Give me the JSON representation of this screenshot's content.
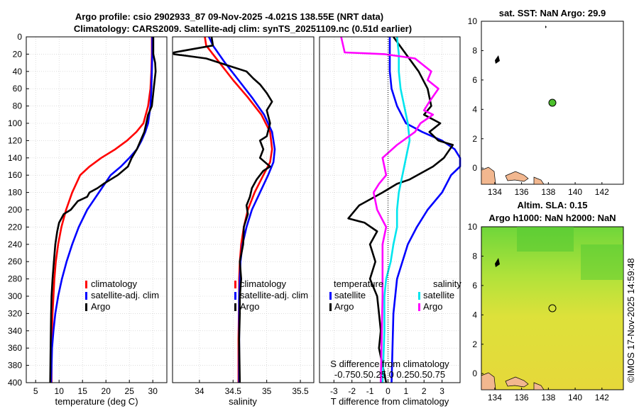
{
  "colors": {
    "climatology": "#ff0000",
    "satellite": "#0000ff",
    "argo": "#000000",
    "salinity_diff": "#ff00ff",
    "satellite_s_diff": "#00e5ee",
    "land": "#f2b78f",
    "grid": "#c8c8c8"
  },
  "titles": {
    "line1": "Argo profile: csio 2902933_87 09-Nov-2025 -4.021S 138.55E (NRT data)",
    "line2": "Climatology: CARS2009. Satellite-adj clim: synTS_20251109.nc (0.51d earlier)"
  },
  "depth_axis": {
    "ticks": [
      "0",
      "20",
      "40",
      "60",
      "80",
      "100",
      "120",
      "140",
      "160",
      "180",
      "200",
      "220",
      "240",
      "260",
      "280",
      "300",
      "320",
      "340",
      "360",
      "380",
      "400"
    ],
    "range": [
      0,
      400
    ]
  },
  "chart_data": [
    {
      "type": "line",
      "id": "temperature",
      "xlabel": "temperature (deg C)",
      "xlim": [
        3,
        33
      ],
      "xticks": [
        5,
        10,
        15,
        20,
        25,
        30
      ],
      "xtick_labels": [
        "5",
        "10",
        "15",
        "20",
        "25",
        "30"
      ],
      "ylabel": "depth",
      "ylim": [
        0,
        400
      ],
      "legend": [
        "climatology",
        "satellite-adj. clim",
        "Argo"
      ],
      "series": [
        {
          "name": "climatology",
          "color_key": "climatology",
          "x": [
            29.8,
            29.8,
            29.7,
            29.5,
            29.0,
            28.0,
            26.5,
            24.5,
            22.0,
            19.0,
            16.5,
            14.5,
            12.8,
            11.5,
            10.5,
            9.8,
            9.3,
            9.0,
            8.8,
            8.6,
            8.5,
            8.4,
            8.4
          ],
          "depth": [
            0,
            20,
            40,
            60,
            80,
            100,
            110,
            120,
            130,
            140,
            150,
            160,
            180,
            200,
            220,
            240,
            260,
            280,
            300,
            320,
            340,
            360,
            400
          ]
        },
        {
          "name": "satellite-adj. clim",
          "color_key": "satellite",
          "x": [
            29.9,
            29.9,
            29.8,
            29.7,
            29.5,
            29.0,
            28.4,
            27.6,
            26.6,
            25.0,
            23.2,
            21.0,
            18.5,
            16.0,
            14.2,
            12.8,
            11.6,
            10.6,
            9.8,
            9.2,
            8.8,
            8.5,
            8.3
          ],
          "depth": [
            0,
            20,
            40,
            60,
            80,
            100,
            110,
            120,
            130,
            140,
            150,
            160,
            180,
            200,
            220,
            240,
            260,
            280,
            300,
            320,
            340,
            360,
            400
          ]
        },
        {
          "name": "Argo",
          "color_key": "argo",
          "x": [
            30.1,
            30.1,
            30.5,
            30.6,
            30.2,
            29.8,
            29.0,
            28.6,
            28.2,
            27.4,
            26.6,
            25.5,
            24.7,
            22.5,
            21.0,
            19.5,
            18.2,
            16.5,
            16.0,
            14.0,
            12.5,
            11.0,
            10.5,
            10.0,
            9.6,
            9.2,
            8.9,
            8.6,
            8.4,
            8.3,
            8.2,
            8.1
          ],
          "depth": [
            0,
            20,
            30,
            40,
            60,
            80,
            90,
            100,
            110,
            120,
            130,
            140,
            150,
            160,
            165,
            170,
            175,
            180,
            185,
            190,
            200,
            205,
            210,
            215,
            225,
            240,
            260,
            280,
            300,
            320,
            360,
            400
          ]
        }
      ]
    },
    {
      "type": "line",
      "id": "salinity",
      "xlabel": "salinity",
      "xlim": [
        33.6,
        35.7
      ],
      "xticks": [
        34,
        34.5,
        35,
        35.5
      ],
      "xtick_labels": [
        "34",
        "34.5",
        "35",
        "35.5"
      ],
      "ylabel": "depth",
      "ylim": [
        0,
        400
      ],
      "legend": [
        "climatology",
        "satellite-adj. clim",
        "Argo"
      ],
      "series": [
        {
          "name": "climatology",
          "color_key": "climatology",
          "x": [
            34.08,
            34.1,
            34.3,
            34.5,
            34.72,
            34.92,
            35.05,
            35.08,
            35.05,
            34.95,
            34.82,
            34.72,
            34.66,
            34.62,
            34.6,
            34.59,
            34.59,
            34.58,
            34.58
          ],
          "depth": [
            0,
            10,
            30,
            50,
            70,
            90,
            110,
            130,
            145,
            160,
            180,
            200,
            220,
            240,
            260,
            280,
            300,
            350,
            400
          ]
        },
        {
          "name": "satellite-adj. clim",
          "color_key": "satellite",
          "x": [
            34.14,
            34.2,
            34.38,
            34.58,
            34.78,
            34.96,
            35.08,
            35.12,
            35.1,
            35.02,
            34.9,
            34.78,
            34.7,
            34.64,
            34.61,
            34.6,
            34.59,
            34.59,
            34.59
          ],
          "depth": [
            0,
            10,
            30,
            50,
            70,
            90,
            110,
            130,
            145,
            160,
            180,
            200,
            220,
            240,
            260,
            280,
            300,
            350,
            400
          ]
        },
        {
          "name": "Argo",
          "color_key": "argo",
          "x": [
            34.18,
            34.2,
            33.62,
            33.62,
            34.1,
            34.3,
            34.5,
            34.7,
            34.8,
            34.9,
            35.0,
            35.08,
            35.0,
            35.05,
            35.0,
            34.9,
            34.95,
            34.9,
            35.05,
            34.95,
            34.85,
            34.78,
            34.75,
            34.7,
            34.72,
            34.66,
            34.65,
            34.6,
            34.62,
            34.6,
            34.6,
            34.59,
            34.6
          ],
          "depth": [
            0,
            10,
            18,
            20,
            25,
            30,
            35,
            40,
            48,
            55,
            65,
            75,
            85,
            100,
            115,
            120,
            130,
            140,
            150,
            155,
            165,
            175,
            185,
            195,
            205,
            220,
            240,
            260,
            280,
            300,
            320,
            350,
            400
          ]
        }
      ]
    },
    {
      "type": "line",
      "id": "differences",
      "xlabel": "T difference from climatology",
      "top_xlabel": "S difference from climatology",
      "xlim": [
        -3.8,
        4.0
      ],
      "xticks": [
        -3,
        -2,
        -1,
        0,
        1,
        2,
        3
      ],
      "xtick_labels": [
        "-3",
        "-2",
        "-1",
        "0",
        "1",
        "2",
        "3"
      ],
      "top_xticks_text": "-0.750.50.25 0 0.250.50.75",
      "ylabel": "depth",
      "ylim": [
        0,
        400
      ],
      "legend_titles": [
        "temperature",
        "salinity"
      ],
      "legend": [
        "satellite",
        "Argo",
        "satellite",
        "Argo"
      ],
      "series": [
        {
          "name": "T satellite",
          "color_key": "satellite",
          "x": [
            0.1,
            0.1,
            0.1,
            0.2,
            0.5,
            1.0,
            1.9,
            3.0,
            3.7,
            4.0,
            4.0,
            3.5,
            3.0,
            2.2,
            1.6,
            1.1,
            0.8,
            0.5,
            0.3,
            0.2
          ],
          "depth": [
            0,
            20,
            40,
            60,
            80,
            100,
            110,
            120,
            130,
            140,
            150,
            160,
            180,
            200,
            220,
            240,
            260,
            280,
            320,
            400
          ]
        },
        {
          "name": "T Argo",
          "color_key": "argo",
          "x": [
            0.3,
            1.0,
            1.7,
            2.2,
            2.4,
            2.0,
            2.9,
            2.3,
            2.8,
            3.6,
            3.1,
            2.5,
            1.2,
            0.5,
            -0.3,
            -1.6,
            -2.2,
            -1.3,
            -0.6,
            -1.0,
            -0.7,
            -1.0,
            -0.6,
            -0.5,
            -0.4,
            -0.5,
            -0.3,
            -0.2,
            -0.1
          ],
          "depth": [
            0,
            20,
            40,
            60,
            80,
            90,
            100,
            110,
            120,
            125,
            140,
            150,
            165,
            170,
            180,
            195,
            210,
            215,
            225,
            240,
            260,
            280,
            300,
            320,
            340,
            360,
            380,
            390,
            400
          ]
        },
        {
          "name": "S satellite",
          "color_key": "satellite_s_diff",
          "x": [
            0.5,
            0.6,
            0.6,
            0.7,
            0.9,
            1.1,
            1.2,
            1.0,
            0.8,
            0.6,
            0.5,
            0.5,
            0.3,
            0.15,
            -0.1,
            -0.2,
            -0.2,
            -0.3
          ],
          "depth": [
            0,
            20,
            40,
            60,
            80,
            100,
            120,
            140,
            160,
            180,
            200,
            220,
            240,
            260,
            280,
            300,
            340,
            400
          ]
        },
        {
          "name": "S Argo",
          "color_key": "salinity_diff",
          "x": [
            -2.6,
            -2.4,
            -0.2,
            1.5,
            2.4,
            2.2,
            2.8,
            2.3,
            2.0,
            2.5,
            1.8,
            1.5,
            0.5,
            -0.3,
            -0.1,
            -0.5,
            -0.8,
            -0.6,
            -0.1,
            -0.3,
            -0.3,
            -0.3,
            -0.4
          ],
          "depth": [
            0,
            18,
            20,
            25,
            40,
            50,
            60,
            75,
            85,
            90,
            100,
            110,
            125,
            140,
            160,
            170,
            180,
            200,
            220,
            240,
            280,
            300,
            400
          ]
        },
        {
          "name": "zero line",
          "color_key": "argo",
          "dashed": true,
          "x": [
            0,
            0
          ],
          "depth": [
            0,
            400
          ]
        }
      ]
    }
  ],
  "maps": {
    "sst": {
      "title": "sat. SST: NaN Argo: 29.9",
      "xticks": [
        "134",
        "136",
        "138",
        "140",
        "142"
      ],
      "yticks": [
        "10",
        "8",
        "6",
        "4",
        "2",
        "0"
      ],
      "point_lon": 138.55,
      "point_lat": 4.0
    },
    "sla": {
      "title1": "Altim. SLA: 0.15",
      "title2": "Argo h1000: NaN h2000: NaN",
      "xticks": [
        "134",
        "136",
        "138",
        "140",
        "142"
      ],
      "yticks": [
        "10",
        "8",
        "6",
        "4",
        "2",
        "0"
      ],
      "point_lon": 138.55,
      "point_lat": 4.0
    }
  },
  "footer": {
    "watermark": "©IMOS 17-Nov-2025 14:59:48"
  }
}
